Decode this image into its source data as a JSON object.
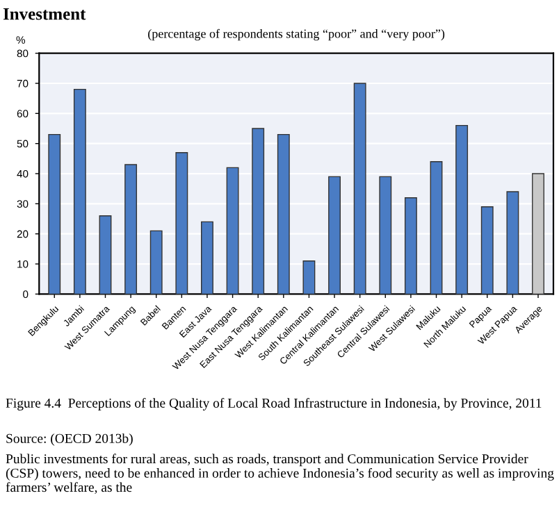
{
  "chart_data": {
    "type": "bar",
    "subtitle": "(percentage of respondents stating “poor” and “very poor”)",
    "ylabel": "%",
    "categories": [
      "Bengkulu",
      "Jambi",
      "West Sumatra",
      "Lampung",
      "Babel",
      "Banten",
      "East Java",
      "West Nusa Tenggara",
      "East Nusa Tenggara",
      "West Kalimantan",
      "South Kalimantan",
      "Central Kalimantan",
      "Southeast Sulawesi",
      "Central Sulawesi",
      "West Sulawesi",
      "Maluku",
      "North Maluku",
      "Papua",
      "West Papua",
      "Average"
    ],
    "values": [
      53,
      68,
      26,
      43,
      21,
      47,
      24,
      42,
      55,
      53,
      11,
      39,
      70,
      39,
      32,
      44,
      56,
      29,
      34,
      40
    ],
    "colors": [
      "#4a7cc4",
      "#4a7cc4",
      "#4a7cc4",
      "#4a7cc4",
      "#4a7cc4",
      "#4a7cc4",
      "#4a7cc4",
      "#4a7cc4",
      "#4a7cc4",
      "#4a7cc4",
      "#4a7cc4",
      "#4a7cc4",
      "#4a7cc4",
      "#4a7cc4",
      "#4a7cc4",
      "#4a7cc4",
      "#4a7cc4",
      "#4a7cc4",
      "#4a7cc4",
      "#c8c8c8"
    ],
    "ylim": [
      0,
      80
    ],
    "yticks": [
      0,
      10,
      20,
      30,
      40,
      50,
      60,
      70,
      80
    ],
    "grid": "y",
    "annotations": [
      "Investment",
      "Figure 4.4  Perceptions of the Quality of Local Road Infrastructure in Indonesia, by Province, 2011",
      "Source: (OECD 2013b)",
      "Public investments for rural areas, such as roads, transport and Communication Service Provider (CSP) towers, need to be enhanced in order to achieve Indonesia’s food security as well as improving farmers’ welfare, as the"
    ]
  }
}
